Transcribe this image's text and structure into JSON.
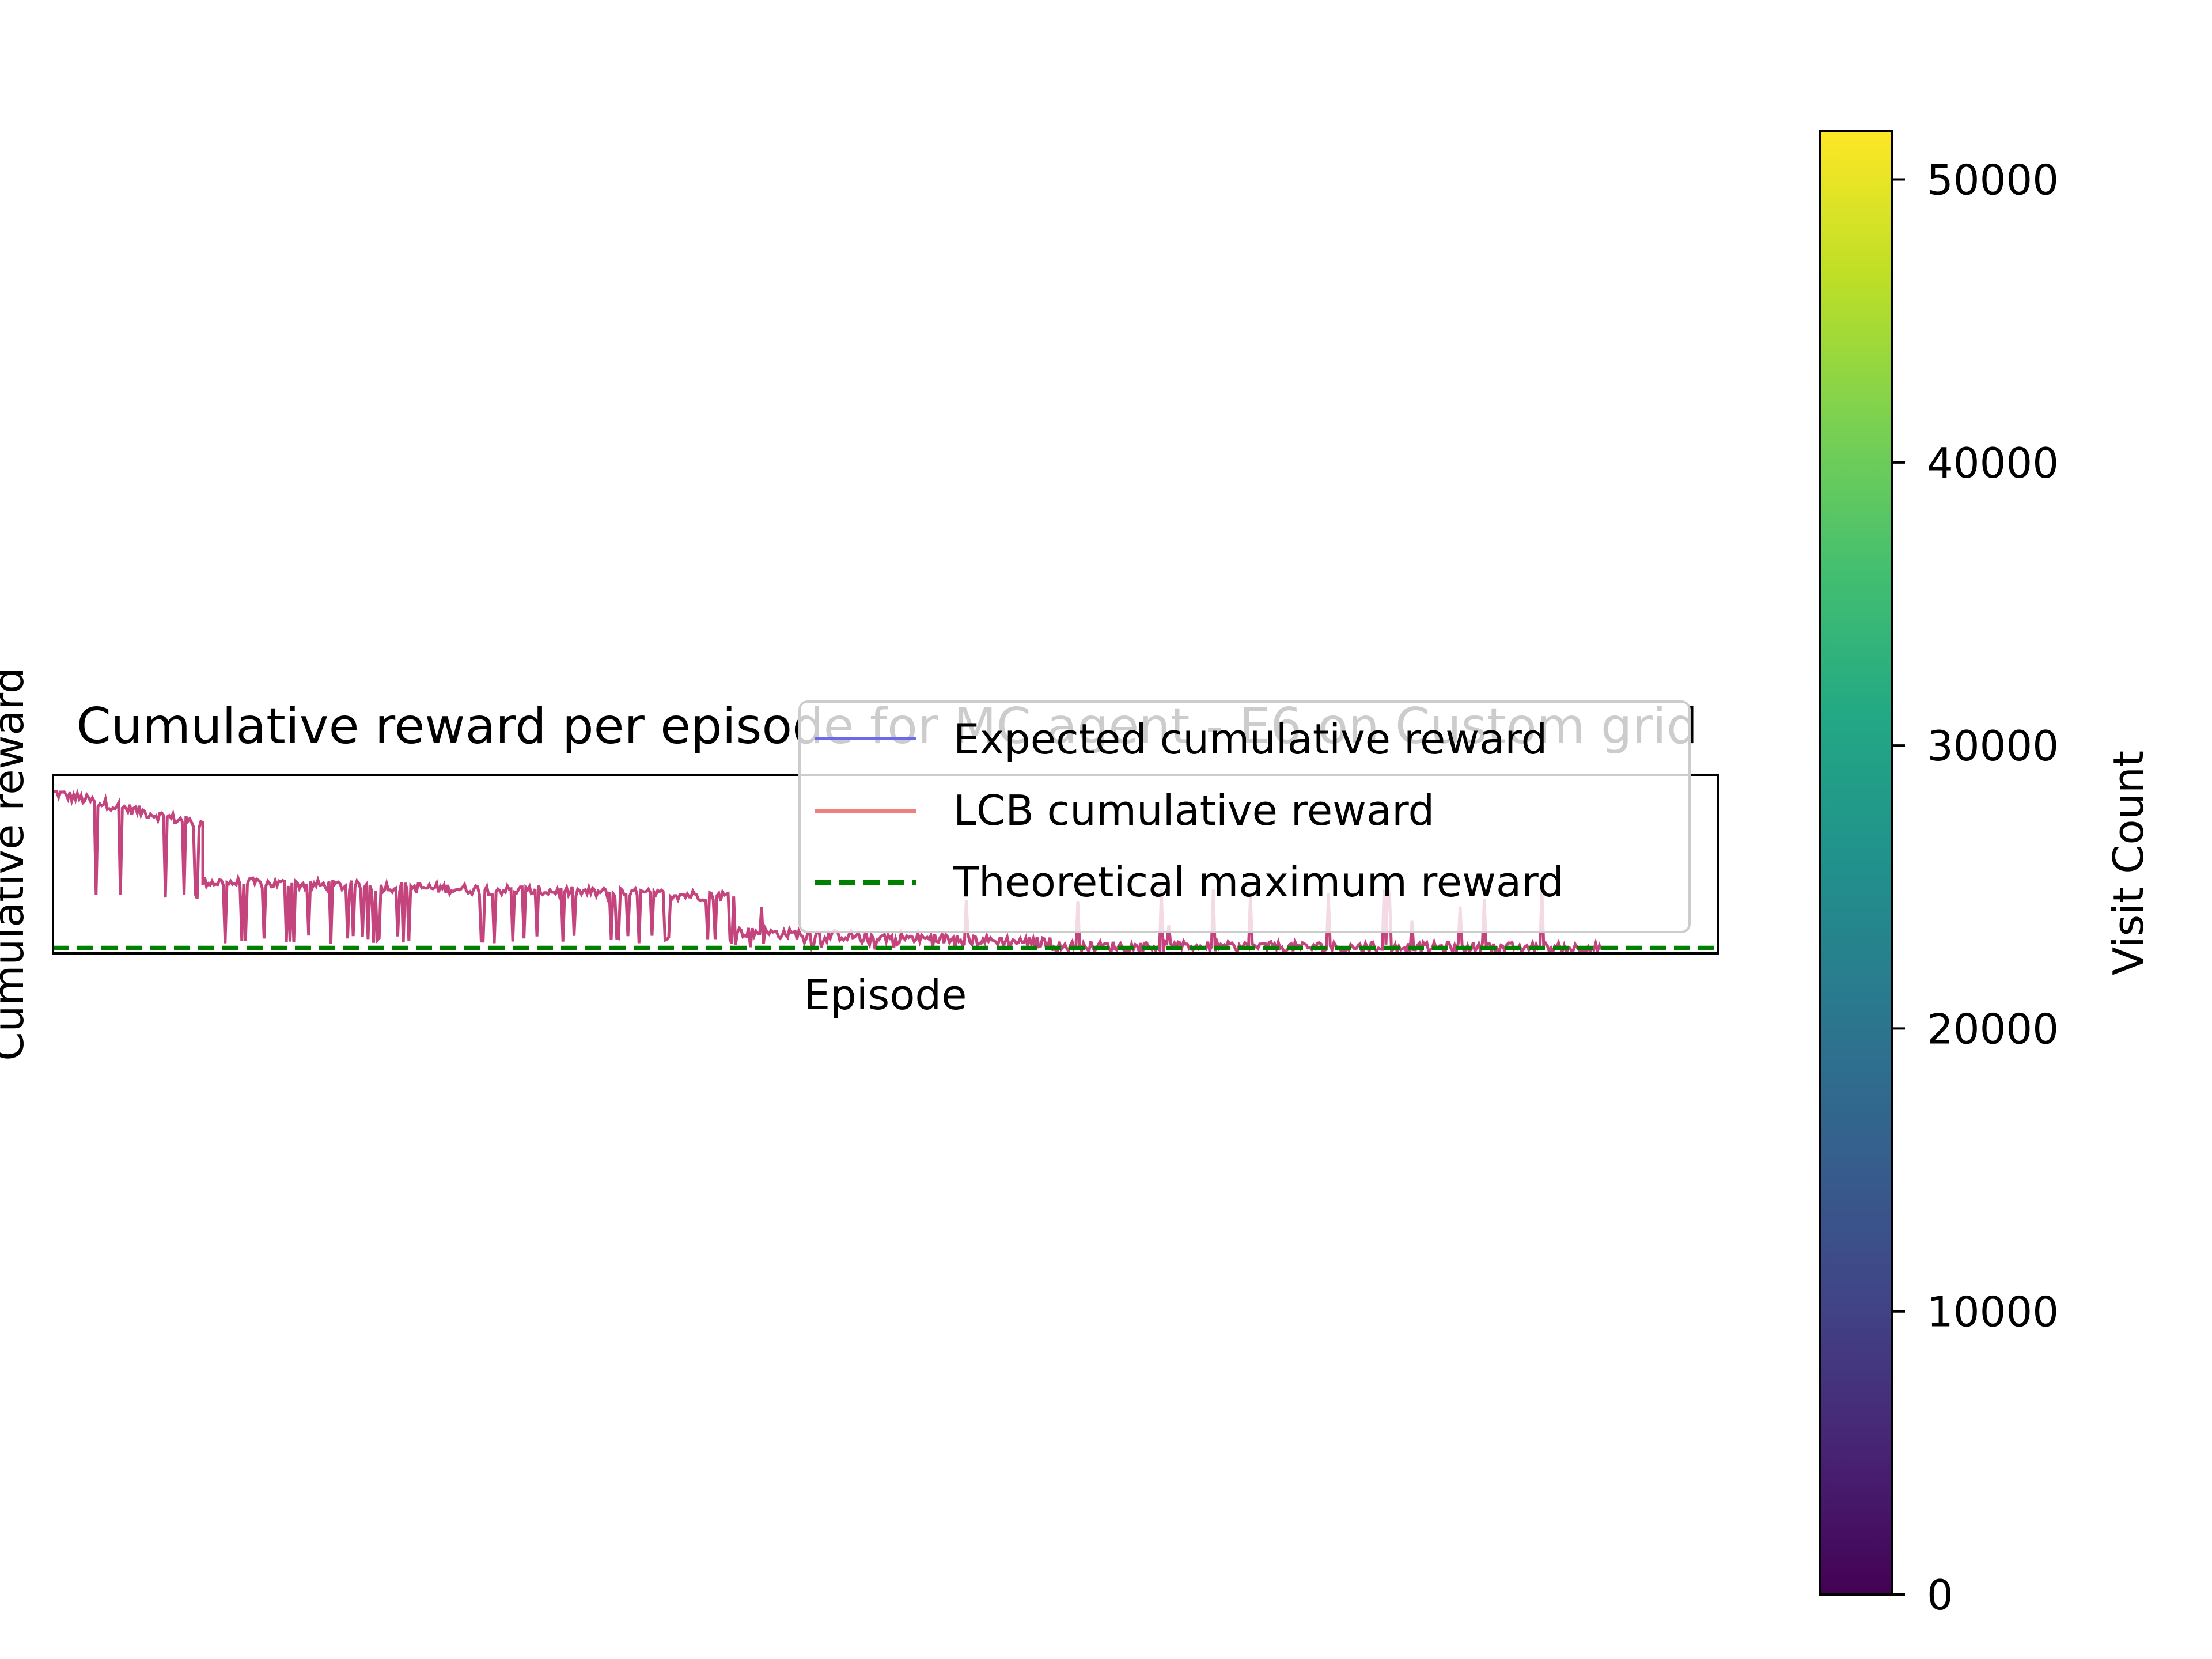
{
  "chart_data": [
    {
      "type": "line",
      "title": "Cumulative reward per episode for MC agent - E6 on Custom grid",
      "xlabel": "Episode",
      "ylabel": "Cumulative reward",
      "grid": false,
      "legend_position": "upper-right",
      "x_ticks_visible": false,
      "y_ticks_visible": false,
      "series": [
        {
          "name": "Expected cumulative reward",
          "color": "#6b6bea",
          "style": "solid",
          "note_shape": "noisy reward trace: high early, drops, then mostly near the maximum with occasional spikes",
          "segments": [
            {
              "episode_range": [
                0,
                0.09
              ],
              "level": [
                0.9,
                0.72
              ],
              "spike_floor": 0.3
            },
            {
              "episode_range": [
                0.09,
                0.41
              ],
              "level": [
                0.4,
                0.32
              ],
              "spike_floor": 0.05
            },
            {
              "episode_range": [
                0.41,
                0.6
              ],
              "level": [
                0.12,
                0.06
              ],
              "spike_floor": 0.02
            },
            {
              "episode_range": [
                0.6,
                0.93
              ],
              "level": [
                0.04,
                0.03
              ],
              "spike_floor": 0.01
            }
          ]
        },
        {
          "name": "LCB cumulative reward",
          "color": "#f08080",
          "style": "solid"
        },
        {
          "name": "Theoretical maximum reward",
          "color": "#008000",
          "style": "dashed",
          "constant_level": 0.03
        }
      ]
    },
    {
      "type": "colorbar",
      "label": "Visit Count",
      "colormap": "viridis",
      "range": [
        0,
        51700
      ],
      "ticks": [
        "0",
        "10000",
        "20000",
        "30000",
        "40000",
        "50000"
      ],
      "tick_values": [
        0,
        10000,
        20000,
        30000,
        40000,
        50000
      ]
    }
  ],
  "colors": {
    "trace": "#c4457e",
    "expected": "#6b6bea",
    "lcb": "#f08080",
    "maximum": "#008000"
  }
}
